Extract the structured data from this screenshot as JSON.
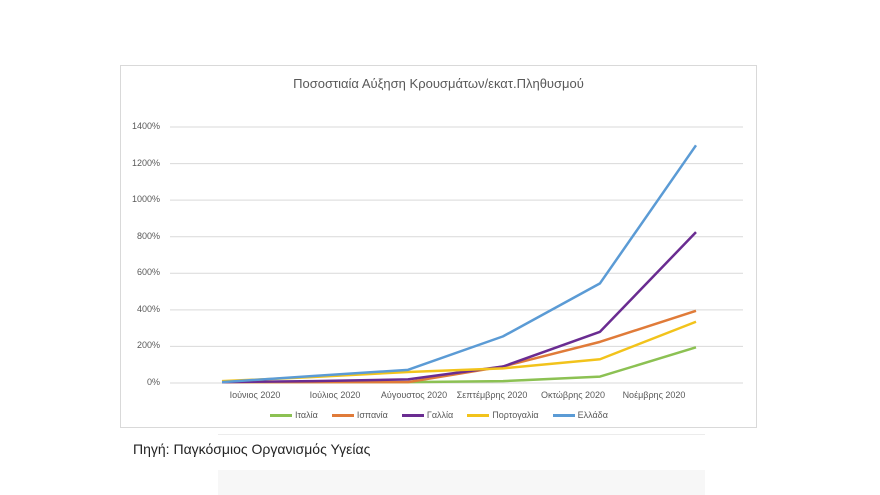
{
  "source_text": "Πηγή: Παγκόσμιος Οργανισμός Υγείας",
  "chart_data": {
    "type": "line",
    "title": "Ποσοστιαία Αύξηση Κρουσμάτων/εκατ.Πληθυσμού",
    "xlabel": "",
    "ylabel": "",
    "categories": [
      "Ιούνιος 2020",
      "Ιούλιος 2020",
      "Αύγουστος 2020",
      "Σεπτέμβρης 2020",
      "Οκτώβρης 2020",
      "Νοέμβρης 2020"
    ],
    "y_ticks": [
      "1400%",
      "1200%",
      "1000%",
      "800%",
      "600%",
      "400%",
      "200%",
      "0%"
    ],
    "ylim": [
      0,
      1400
    ],
    "grid": true,
    "legend_position": "bottom",
    "series": [
      {
        "name": "Ιταλία",
        "color": "#8cc153",
        "values": [
          5,
          5,
          5,
          10,
          35,
          195
        ]
      },
      {
        "name": "Ισπανία",
        "color": "#e07b39",
        "values": [
          5,
          5,
          5,
          90,
          225,
          395
        ]
      },
      {
        "name": "Γαλλία",
        "color": "#6a2c91",
        "values": [
          5,
          10,
          20,
          90,
          280,
          825
        ]
      },
      {
        "name": "Πορτογαλία",
        "color": "#f2c31b",
        "values": [
          10,
          33,
          60,
          80,
          130,
          335
        ]
      },
      {
        "name": "Ελλάδα",
        "color": "#5b9bd5",
        "values": [
          5,
          38,
          72,
          255,
          545,
          1300
        ]
      }
    ]
  }
}
